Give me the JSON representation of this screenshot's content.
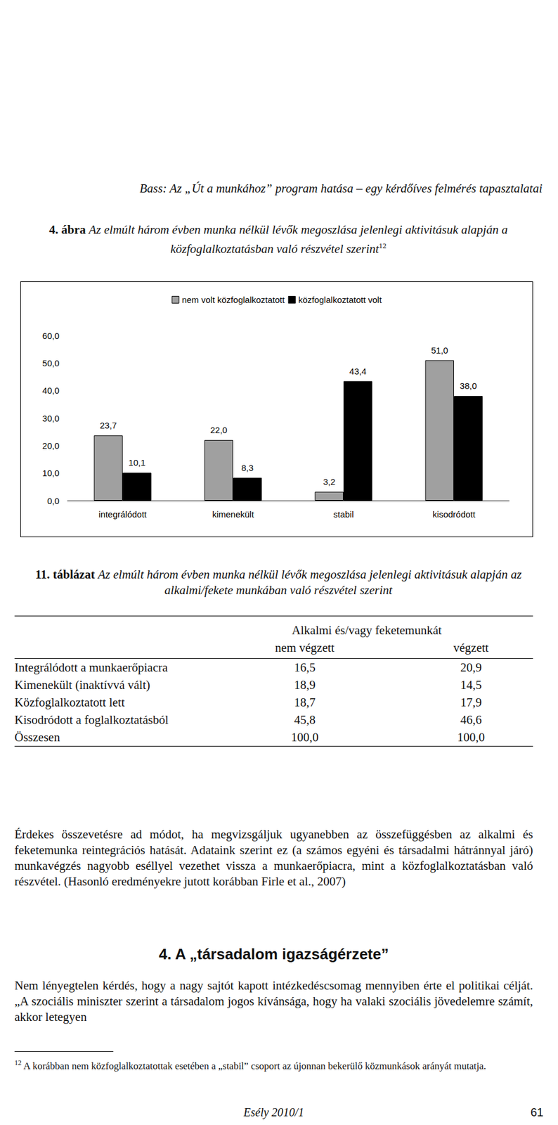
{
  "header": "Bass: Az „Út a munkához” program hatása – egy kérdőíves felmérés tapasztalatai",
  "figure_caption": {
    "label": "4. ábra",
    "text": "Az elmúlt három évben munka nélkül lévők megoszlása jelenlegi aktivitásuk alapján a közfoglalkoztatásban való részvétel szerint",
    "footnote_ref": "12"
  },
  "chart_data": {
    "type": "bar",
    "categories": [
      "integrálódott",
      "kimenekült",
      "stabil",
      "kisodródott"
    ],
    "series": [
      {
        "name": "nem volt közfoglalkoztatott",
        "color": "#a0a0a0",
        "values": [
          23.7,
          22.0,
          3.2,
          51.0
        ],
        "value_labels": [
          "23,7",
          "22,0",
          "3,2",
          "51,0"
        ]
      },
      {
        "name": "közfoglalkoztatott volt",
        "color": "#000000",
        "values": [
          10.1,
          8.3,
          43.4,
          38.0
        ],
        "value_labels": [
          "10,1",
          "8,3",
          "43,4",
          "38,0"
        ]
      }
    ],
    "ylim": [
      0,
      60
    ],
    "yticks": [
      {
        "value": 0,
        "label": "0,0"
      },
      {
        "value": 10,
        "label": "10,0"
      },
      {
        "value": 20,
        "label": "20,0"
      },
      {
        "value": 30,
        "label": "30,0"
      },
      {
        "value": 40,
        "label": "40,0"
      },
      {
        "value": 50,
        "label": "50,0"
      },
      {
        "value": 60,
        "label": "60,0"
      }
    ],
    "grid": false,
    "legend": "top",
    "data_labels": true
  },
  "table_caption": {
    "label": "11. táblázat",
    "text": "Az elmúlt három évben munka nélkül lévők megoszlása jelenlegi aktivitásuk alapján az alkalmi/fekete munkában való részvétel szerint"
  },
  "table": {
    "group_header": "Alkalmi és/vagy feketemunkát",
    "columns": [
      "nem végzett",
      "végzett"
    ],
    "rows": [
      [
        "Integrálódott a munkaerőpiacra",
        "16,5",
        "20,9"
      ],
      [
        "Kimenekült (inaktívvá vált)",
        "18,9",
        "14,5"
      ],
      [
        "Közfoglalkoztatott lett",
        "18,7",
        "17,9"
      ],
      [
        "Kisodródott a foglalkoztatásból",
        "45,8",
        "46,6"
      ],
      [
        "Összesen",
        "100,0",
        "100,0"
      ]
    ]
  },
  "paragraph_1": "Érdekes összevetésre ad módot, ha megvizsgáljuk ugyanebben az összefüggésben az alkalmi és feketemunka reintegrációs hatását. Adataink szerint ez (a számos egyéni és társadalmi hátránnyal járó) munkavégzés nagyobb eséllyel vezethet vissza a munkaerőpiacra, mint a közfoglalkoztatásban való részvétel. (Hasonló eredményekre jutott korábban Firle et al., 2007)",
  "section_heading": "4. A „társadalom igazságérzete”",
  "paragraph_2": "Nem lényegtelen kérdés, hogy a nagy sajtót kapott intézkedéscsomag mennyiben érte el politikai célját. „A szociális miniszter szerint a társadalom jogos kívánsága, hogy ha valaki szociális jövedelemre számít, akkor letegyen",
  "footnote": {
    "number": "12",
    "text": "A korábban nem közfoglalkoztatottak esetében a „stabil” csoport az újonnan bekerülő közmunkások arányát mutatja."
  },
  "footer": {
    "journal": "Esély 2010/1",
    "page": "61"
  }
}
